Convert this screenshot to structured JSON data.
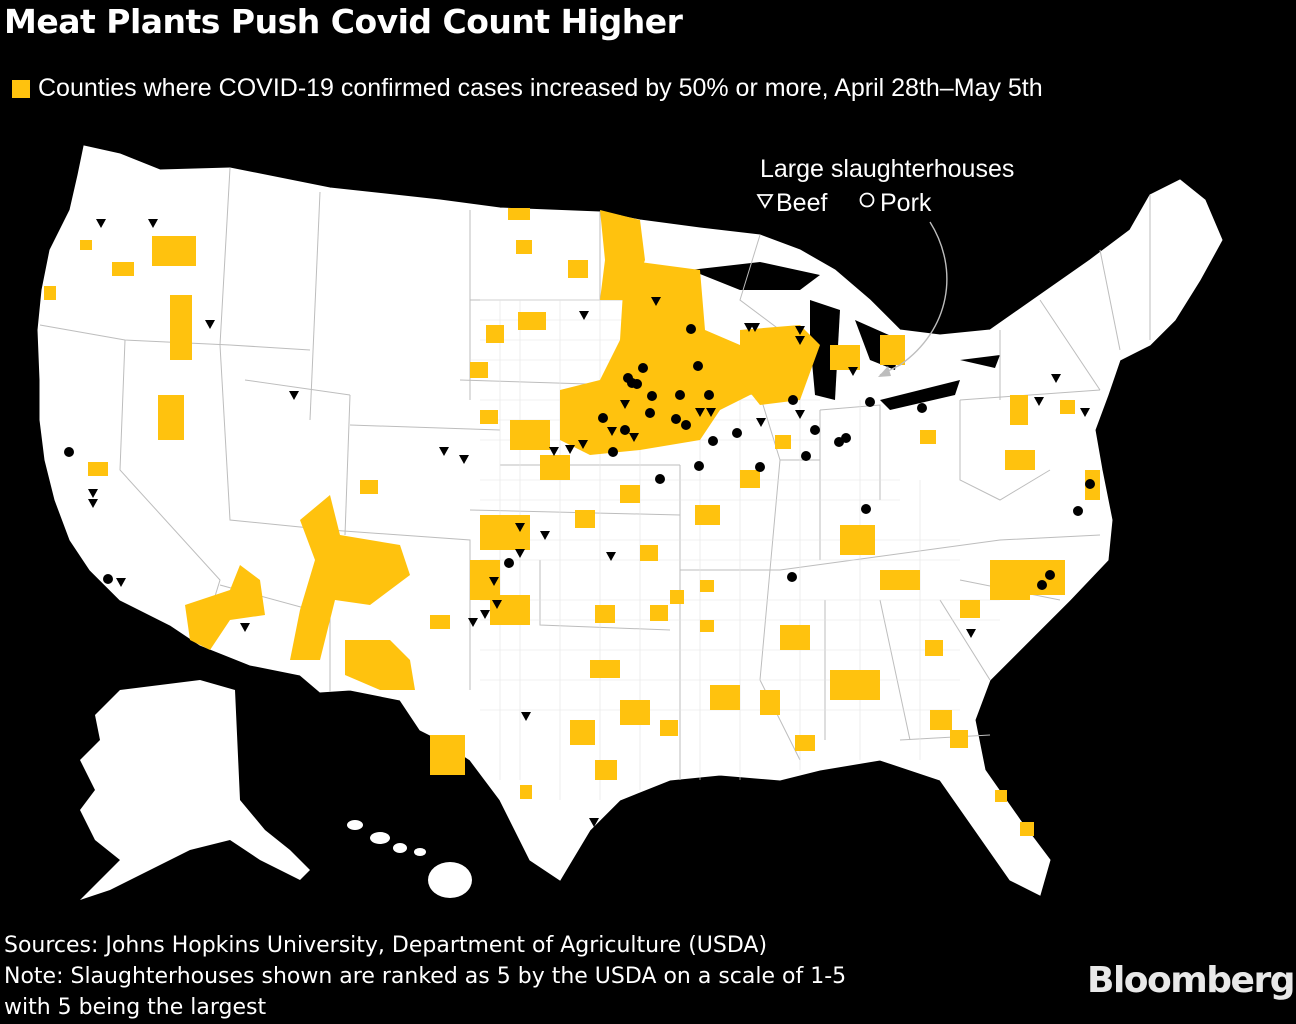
{
  "header": {
    "title": "Meat Plants Push Covid Count Higher",
    "legend": {
      "label": "Counties where COVID-19 confirmed cases increased by 50% or more, April 28th–May 5th",
      "color": "#FFC20E"
    }
  },
  "map": {
    "land_color": "#FFFFFF",
    "ocean_color": "#000000",
    "border_color": "#BDBDBD",
    "highlight_color": "#FFC20E",
    "marker_color": "#000000",
    "key": {
      "title": "Large slaughterhouses",
      "beef_label": "Beef",
      "pork_label": "Pork",
      "beef_icon": "triangle-down-outline-icon",
      "pork_icon": "circle-outline-icon"
    }
  },
  "footer": {
    "sources": "Sources: Johns Hopkins University, Department of Agriculture (USDA)",
    "note_line1": "Note: Slaughterhouses shown are ranked as 5 by the USDA on a scale of 1-5",
    "note_line2": "with 5 being the largest",
    "brand": "Bloomberg"
  }
}
